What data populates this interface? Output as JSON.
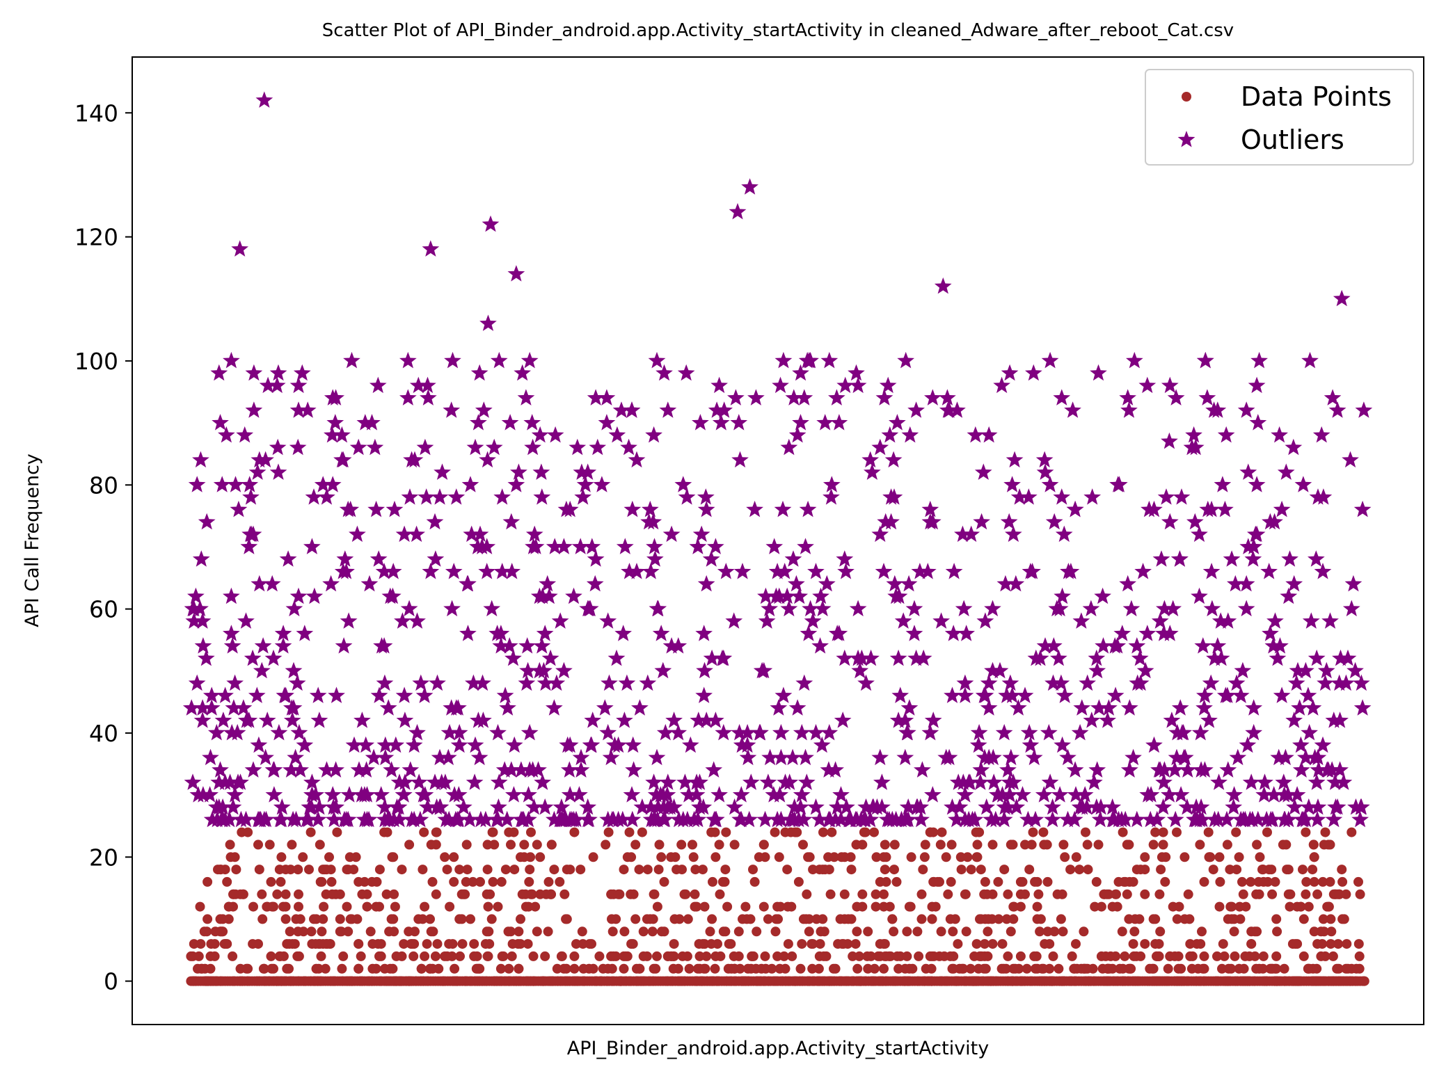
{
  "chart_data": {
    "type": "scatter",
    "title": "Scatter Plot of API_Binder_android.app.Activity_startActivity in cleaned_Adware_after_reboot_Cat.csv",
    "xlabel": "API_Binder_android.app.Activity_startActivity",
    "ylabel": "API Call Frequency",
    "xlim": [
      -96,
      2016
    ],
    "ylim": [
      -7,
      149
    ],
    "xticks_visible": false,
    "yticks": [
      0,
      20,
      40,
      60,
      80,
      100,
      120,
      140
    ],
    "grid": false,
    "legend": {
      "placement": "top-right"
    },
    "colors": {
      "data_points": "#a52a2a",
      "outliers": "#800080"
    },
    "series": [
      {
        "name": "Data Points",
        "marker": "circle",
        "color": "#a52a2a",
        "generated_count": 1450,
        "value_range": [
          0,
          24
        ],
        "value_step": 2,
        "index_range": [
          0,
          1919
        ]
      },
      {
        "name": "Outliers",
        "marker": "star",
        "color": "#800080",
        "notable_points": [
          {
            "x": 120,
            "y": 142
          },
          {
            "x": 80,
            "y": 118
          },
          {
            "x": 392,
            "y": 118
          },
          {
            "x": 490,
            "y": 122
          },
          {
            "x": 486,
            "y": 106
          },
          {
            "x": 532,
            "y": 114
          },
          {
            "x": 894,
            "y": 124
          },
          {
            "x": 914,
            "y": 128
          },
          {
            "x": 1230,
            "y": 112
          },
          {
            "x": 1882,
            "y": 110
          },
          {
            "x": 1484,
            "y": 98
          },
          {
            "x": 10,
            "y": 80
          },
          {
            "x": 1600,
            "y": 87
          }
        ],
        "generated_count": 1120,
        "value_range": [
          26,
          100
        ],
        "value_step": 2,
        "index_range": [
          0,
          1919
        ]
      }
    ]
  }
}
